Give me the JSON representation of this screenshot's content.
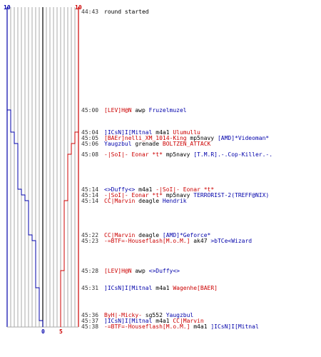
{
  "chart_data": {
    "type": "line",
    "top_labels": {
      "left": "10",
      "right": "10"
    },
    "bottom_labels": {
      "left": "0",
      "right": "5"
    },
    "colors": {
      "blue": "#0000aa",
      "red": "#cc0000",
      "grid": "#aaaaaa",
      "axis": "#000000"
    },
    "blue_series": [
      10,
      10,
      9,
      9,
      8,
      8,
      7,
      7,
      6,
      6,
      5,
      5,
      4,
      4,
      3,
      3,
      2,
      1,
      0
    ],
    "red_series": [
      10,
      10,
      10,
      9,
      9,
      8,
      7,
      6,
      6,
      5,
      5
    ]
  },
  "log": [
    {
      "time": "44:43",
      "parts": [
        {
          "t": "round started",
          "c": "black"
        }
      ]
    },
    {
      "time": "45:00",
      "parts": [
        {
          "t": "[LEV]H@N",
          "c": "red"
        },
        {
          "t": " awp ",
          "c": "black"
        },
        {
          "t": "Fruzelmuzel",
          "c": "blue"
        }
      ]
    },
    {
      "time": "45:04",
      "parts": [
        {
          "t": "]ICsN]I[Mitnal",
          "c": "blue"
        },
        {
          "t": " m4a1 ",
          "c": "black"
        },
        {
          "t": "Ulumullu",
          "c": "red"
        }
      ]
    },
    {
      "time": "45:05",
      "parts": [
        {
          "t": "[BAEr]nelli_XM_1014-King",
          "c": "red"
        },
        {
          "t": " mp5navy ",
          "c": "black"
        },
        {
          "t": "[AMD]*Videoman*",
          "c": "blue"
        }
      ]
    },
    {
      "time": "45:06",
      "parts": [
        {
          "t": "Yaugzbul",
          "c": "blue"
        },
        {
          "t": " grenade ",
          "c": "black"
        },
        {
          "t": "BOLTZEN_ATTACK",
          "c": "red"
        }
      ]
    },
    {
      "time": "45:08",
      "parts": [
        {
          "t": "-|SoI|- Eonar *t*",
          "c": "red"
        },
        {
          "t": " mp5navy ",
          "c": "black"
        },
        {
          "t": "[T.M.R].-.Cop-Killer.-.",
          "c": "blue"
        }
      ]
    },
    {
      "time": "45:14",
      "parts": [
        {
          "t": "<>Duffy<>",
          "c": "blue"
        },
        {
          "t": " m4a1 ",
          "c": "black"
        },
        {
          "t": "-|SoI|- Eonar *t*",
          "c": "red"
        }
      ]
    },
    {
      "time": "45:14",
      "parts": [
        {
          "t": "-|SoI|- Eonar *t*",
          "c": "red"
        },
        {
          "t": " mp5navy ",
          "c": "black"
        },
        {
          "t": "TERRORIST-2(TREFF@NIX)",
          "c": "blue"
        }
      ]
    },
    {
      "time": "45:14",
      "parts": [
        {
          "t": "CC|Marvin",
          "c": "red"
        },
        {
          "t": " deagle ",
          "c": "black"
        },
        {
          "t": "Hendrik",
          "c": "blue"
        }
      ]
    },
    {
      "time": "45:22",
      "parts": [
        {
          "t": "CC|Marvin",
          "c": "red"
        },
        {
          "t": " deagle ",
          "c": "black"
        },
        {
          "t": "[AMD]*Geforce*",
          "c": "blue"
        }
      ]
    },
    {
      "time": "45:23",
      "parts": [
        {
          "t": "-=BTF=-Houseflash[M.o.M.]",
          "c": "red"
        },
        {
          "t": " ak47 ",
          "c": "black"
        },
        {
          "t": ">bTCe<Wizard",
          "c": "blue"
        }
      ]
    },
    {
      "time": "45:28",
      "parts": [
        {
          "t": "[LEV]H@N",
          "c": "red"
        },
        {
          "t": " awp ",
          "c": "black"
        },
        {
          "t": "<>Duffy<>",
          "c": "blue"
        }
      ]
    },
    {
      "time": "45:31",
      "parts": [
        {
          "t": "]ICsN]I[Mitnal",
          "c": "blue"
        },
        {
          "t": " m4a1 ",
          "c": "black"
        },
        {
          "t": "Wagenhe[BAER]",
          "c": "red"
        }
      ]
    },
    {
      "time": "45:36",
      "parts": [
        {
          "t": "ByH|-Micky-",
          "c": "red"
        },
        {
          "t": " sg552 ",
          "c": "black"
        },
        {
          "t": "Yaugzbul",
          "c": "blue"
        }
      ]
    },
    {
      "time": "45:37",
      "parts": [
        {
          "t": "]ICsN]I[Mitnal",
          "c": "blue"
        },
        {
          "t": " m4a1 ",
          "c": "black"
        },
        {
          "t": "CC|Marvin",
          "c": "red"
        }
      ]
    },
    {
      "time": "45:38",
      "parts": [
        {
          "t": "-=BTF=-Houseflash[M.o.M.]",
          "c": "red"
        },
        {
          "t": " m4a1 ",
          "c": "black"
        },
        {
          "t": "]ICsN]I[Mitnal",
          "c": "blue"
        }
      ]
    }
  ]
}
